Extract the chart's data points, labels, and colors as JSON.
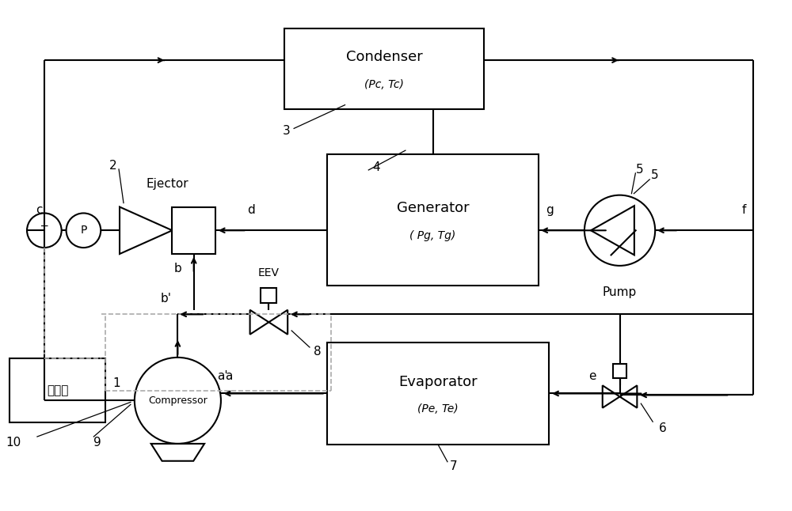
{
  "bg": "#ffffff",
  "lc": "#000000",
  "dc": "#aaaaaa",
  "lw": 1.5,
  "labels": {
    "condenser": "Condenser",
    "condenser_sub": "(Pc, Tc)",
    "generator": "Generator",
    "generator_sub": "( Pg, Tg)",
    "evaporator": "Evaporator",
    "evaporator_sub": "(Pe, Te)",
    "compressor": "Compressor",
    "pump": "Pump",
    "ejector": "Ejector",
    "controller": "控制器",
    "eev": "EEV"
  }
}
